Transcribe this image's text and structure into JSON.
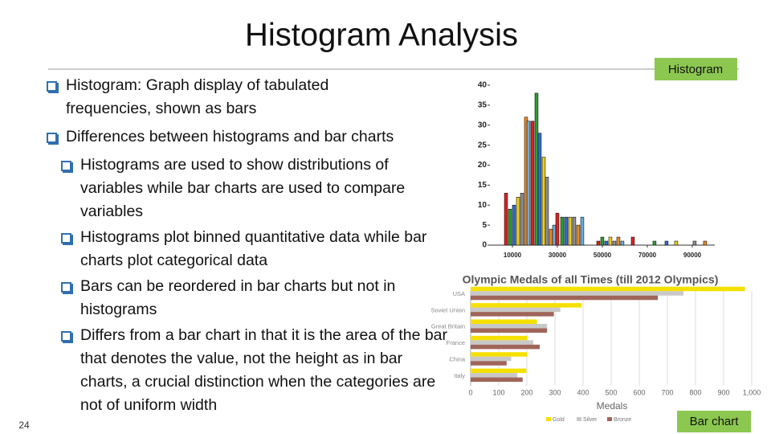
{
  "title": "Histogram Analysis",
  "bullets": [
    {
      "text": "Histogram: Graph display of tabulated frequencies, shown as bars"
    },
    {
      "text": "Differences between histograms and bar charts",
      "sub": [
        "Histograms are used to show distributions of variables while bar charts are used to compare variables",
        "Histograms plot binned quantitative data while bar charts plot categorical data",
        "Bars can be reordered in bar charts but not in histograms",
        "Differs from a bar chart in that it is the area of the bar that denotes the value, not the height as in bar charts, a crucial distinction when the categories are not of uniform width"
      ]
    }
  ],
  "labels": {
    "histogram": "Histogram",
    "bar_chart": "Bar chart"
  },
  "page_number": 24,
  "chart_data": [
    {
      "type": "histogram",
      "x": [
        7144,
        8929,
        10714,
        12499,
        14284,
        16069,
        17140,
        18925,
        20710,
        22138,
        23923,
        25351,
        27136,
        28564,
        29992,
        32134,
        33919,
        35704,
        37489,
        39274,
        41059,
        48199,
        49984,
        51769,
        53554,
        55339,
        57124,
        58909,
        63550,
        73189,
        78544,
        82828,
        91039,
        95680
      ],
      "values": [
        13,
        9,
        10,
        12,
        13,
        32,
        31,
        31,
        38,
        28,
        22,
        17,
        4,
        5,
        8,
        7,
        7,
        7,
        7,
        5,
        7,
        1,
        2,
        1,
        2,
        1,
        2,
        1,
        2,
        1,
        1,
        1,
        1,
        1
      ],
      "colors": [
        "#e02020",
        "#2e9e2e",
        "#2f6fd0",
        "#f0d020",
        "#909090",
        "#f08a20",
        "#6aaedc"
      ],
      "xlim": [
        0,
        100000
      ],
      "xticks": [
        10000,
        30000,
        50000,
        70000,
        90000
      ],
      "ylim": [
        0,
        40
      ],
      "yticks": [
        0,
        5,
        10,
        15,
        20,
        25,
        30,
        35,
        40
      ]
    },
    {
      "type": "hbar",
      "title": "Olympic Medals of all Times (till 2012 Olympics)",
      "x_label": "Medals",
      "categories": [
        "USA",
        "Soviet Union",
        "Great Britain",
        "France",
        "China",
        "Italy"
      ],
      "series": [
        {
          "name": "Gold",
          "color": "#f5e000",
          "values": [
            976,
            395,
            236,
            202,
            201,
            198
          ]
        },
        {
          "name": "Silver",
          "color": "#c8c8c8",
          "values": [
            757,
            319,
            272,
            223,
            144,
            166
          ]
        },
        {
          "name": "Bronze",
          "color": "#a0655a",
          "values": [
            666,
            296,
            272,
            246,
            128,
            185
          ]
        }
      ],
      "xlim": [
        0,
        1000
      ],
      "xticks": [
        0,
        100,
        200,
        300,
        400,
        500,
        600,
        700,
        800,
        900,
        {
          "value": 1000,
          "label": "1,000"
        }
      ],
      "grid": true
    }
  ]
}
